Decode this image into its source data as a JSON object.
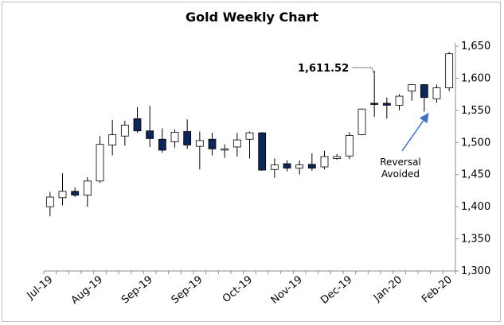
{
  "chart_data": {
    "type": "candlestick",
    "title": "Gold Weekly Chart",
    "ylim": [
      1300,
      1650
    ],
    "yticks": [
      1300,
      1350,
      1400,
      1450,
      1500,
      1550,
      1600,
      1650
    ],
    "ytick_labels": [
      "1,300",
      "1,350",
      "1,400",
      "1,450",
      "1,500",
      "1,550",
      "1,600",
      "1,650"
    ],
    "x_tick_labels": [
      "Jul-19",
      "Aug-19",
      "Sep-19",
      "Sep-19",
      "Oct-19",
      "Nov-19",
      "Dec-19",
      "Jan-20",
      "Feb-20"
    ],
    "x_tick_positions": [
      0,
      4,
      8,
      12,
      16,
      20,
      24,
      28,
      32
    ],
    "candles": [
      {
        "open": 1400,
        "high": 1423,
        "low": 1385,
        "close": 1415
      },
      {
        "open": 1414,
        "high": 1452,
        "low": 1402,
        "close": 1424
      },
      {
        "open": 1424,
        "high": 1430,
        "low": 1415,
        "close": 1418
      },
      {
        "open": 1418,
        "high": 1446,
        "low": 1400,
        "close": 1440
      },
      {
        "open": 1440,
        "high": 1510,
        "low": 1437,
        "close": 1497
      },
      {
        "open": 1496,
        "high": 1535,
        "low": 1480,
        "close": 1512
      },
      {
        "open": 1510,
        "high": 1534,
        "low": 1495,
        "close": 1527
      },
      {
        "open": 1537,
        "high": 1555,
        "low": 1515,
        "close": 1518
      },
      {
        "open": 1518,
        "high": 1557,
        "low": 1493,
        "close": 1506
      },
      {
        "open": 1505,
        "high": 1522,
        "low": 1484,
        "close": 1488
      },
      {
        "open": 1501,
        "high": 1520,
        "low": 1492,
        "close": 1516
      },
      {
        "open": 1517,
        "high": 1536,
        "low": 1490,
        "close": 1496
      },
      {
        "open": 1494,
        "high": 1517,
        "low": 1458,
        "close": 1503
      },
      {
        "open": 1505,
        "high": 1515,
        "low": 1480,
        "close": 1490
      },
      {
        "open": 1489,
        "high": 1497,
        "low": 1476,
        "close": 1490
      },
      {
        "open": 1493,
        "high": 1515,
        "low": 1478,
        "close": 1504
      },
      {
        "open": 1505,
        "high": 1517,
        "low": 1475,
        "close": 1515
      },
      {
        "open": 1515,
        "high": 1516,
        "low": 1456,
        "close": 1457
      },
      {
        "open": 1458,
        "high": 1475,
        "low": 1445,
        "close": 1465
      },
      {
        "open": 1467,
        "high": 1472,
        "low": 1455,
        "close": 1460
      },
      {
        "open": 1460,
        "high": 1472,
        "low": 1450,
        "close": 1465
      },
      {
        "open": 1466,
        "high": 1483,
        "low": 1456,
        "close": 1460
      },
      {
        "open": 1462,
        "high": 1487,
        "low": 1458,
        "close": 1478
      },
      {
        "open": 1475,
        "high": 1482,
        "low": 1473,
        "close": 1478
      },
      {
        "open": 1479,
        "high": 1516,
        "low": 1474,
        "close": 1511
      },
      {
        "open": 1512,
        "high": 1553,
        "low": 1511,
        "close": 1552
      },
      {
        "open": 1561,
        "high": 1611.52,
        "low": 1540,
        "close": 1560
      },
      {
        "open": 1561,
        "high": 1570,
        "low": 1537,
        "close": 1558
      },
      {
        "open": 1558,
        "high": 1575,
        "low": 1550,
        "close": 1572
      },
      {
        "open": 1580,
        "high": 1590,
        "low": 1565,
        "close": 1590
      },
      {
        "open": 1590,
        "high": 1591,
        "low": 1548,
        "close": 1570
      },
      {
        "open": 1568,
        "high": 1590,
        "low": 1562,
        "close": 1585
      },
      {
        "open": 1585,
        "high": 1641,
        "low": 1580,
        "close": 1638
      }
    ],
    "colors": {
      "up_fill": "#ffffff",
      "down_fill": "#0d2559",
      "outline": "#000000",
      "axis": "#8c8c8c",
      "arrow": "#4472c4"
    },
    "annotations": [
      {
        "text": "1,611.52",
        "candle_index": 26,
        "value": 1611.52
      },
      {
        "text": "Reversal Avoided",
        "lines": [
          "Reversal",
          "Avoided"
        ],
        "arrow_to_candle": 30
      }
    ],
    "grid": false
  }
}
